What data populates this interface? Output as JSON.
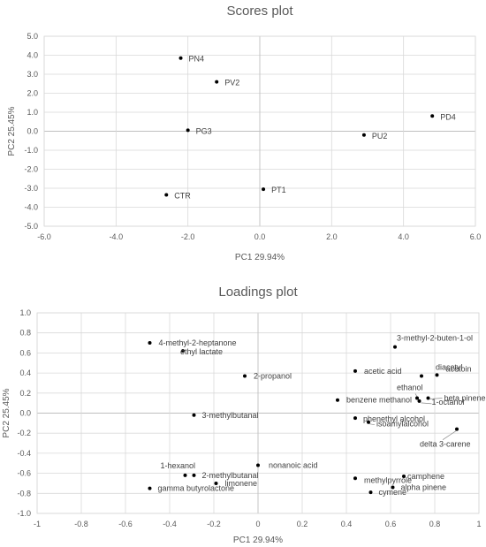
{
  "chart_data": [
    {
      "type": "scatter",
      "title": "Scores plot",
      "xlabel": "PC1 29.94%",
      "ylabel": "PC2 25.45%",
      "xlim": [
        -6,
        6
      ],
      "ylim": [
        -5,
        5
      ],
      "x_ticks": [
        "-6.0",
        "-4.0",
        "-2.0",
        "0.0",
        "2.0",
        "4.0",
        "6.0"
      ],
      "y_ticks": [
        "5.0",
        "4.0",
        "3.0",
        "2.0",
        "1.0",
        "0.0",
        "-1.0",
        "-2.0",
        "-3.0",
        "-4.0",
        "-5.0"
      ],
      "grid": true,
      "points": [
        {
          "label": "PN4",
          "x": -2.2,
          "y": 3.85
        },
        {
          "label": "PV2",
          "x": -1.2,
          "y": 2.6
        },
        {
          "label": "PD4",
          "x": 4.8,
          "y": 0.8
        },
        {
          "label": "PG3",
          "x": -2.0,
          "y": 0.05
        },
        {
          "label": "PU2",
          "x": 2.9,
          "y": -0.2
        },
        {
          "label": "PT1",
          "x": 0.1,
          "y": -3.05
        },
        {
          "label": "CTR",
          "x": -2.6,
          "y": -3.35
        }
      ]
    },
    {
      "type": "scatter",
      "title": "Loadings plot",
      "xlabel": "PC1 29.94%",
      "ylabel": "PC2 25.45%",
      "xlim": [
        -1,
        1
      ],
      "ylim": [
        -1,
        1
      ],
      "x_ticks": [
        "-1",
        "-0.8",
        "-0.6",
        "-0.4",
        "-0.2",
        "0",
        "0.2",
        "0.4",
        "0.6",
        "0.8",
        "1"
      ],
      "y_ticks": [
        "1.0",
        "0.8",
        "0.6",
        "0.4",
        "0.2",
        "0.0",
        "-0.2",
        "-0.4",
        "-0.6",
        "-0.8",
        "-1.0"
      ],
      "grid": true,
      "points": [
        {
          "label": "4-methyl-2-heptanone",
          "x": -0.49,
          "y": 0.7
        },
        {
          "label": "ethyl lactate",
          "x": -0.34,
          "y": 0.62
        },
        {
          "label": "3-methyl-2-buten-1-ol",
          "x": 0.62,
          "y": 0.66
        },
        {
          "label": "2-propanol",
          "x": -0.06,
          "y": 0.37
        },
        {
          "label": "acetic acid",
          "x": 0.44,
          "y": 0.42
        },
        {
          "label": "diacetyl",
          "x": 0.74,
          "y": 0.37
        },
        {
          "label": "acetoin",
          "x": 0.81,
          "y": 0.38
        },
        {
          "label": "benzene methanol",
          "x": 0.36,
          "y": 0.13
        },
        {
          "label": "ethanol",
          "x": 0.72,
          "y": 0.15
        },
        {
          "label": "beta pinene",
          "x": 0.77,
          "y": 0.15
        },
        {
          "label": "3-methylbutanal",
          "x": -0.29,
          "y": -0.02
        },
        {
          "label": "phenethyl alcohol",
          "x": 0.44,
          "y": -0.05
        },
        {
          "label": "isoamylalcohol",
          "x": 0.5,
          "y": -0.09
        },
        {
          "label": "1-octanol",
          "x": 0.73,
          "y": 0.12
        },
        {
          "label": "delta 3-carene",
          "x": 0.9,
          "y": -0.16
        },
        {
          "label": "nonanoic acid",
          "x": 0.0,
          "y": -0.52
        },
        {
          "label": "1-hexanol",
          "x": -0.33,
          "y": -0.62
        },
        {
          "label": "2-methylbutanal",
          "x": -0.29,
          "y": -0.62
        },
        {
          "label": "limonene",
          "x": -0.19,
          "y": -0.7
        },
        {
          "label": "gamma butyrolactone",
          "x": -0.49,
          "y": -0.75
        },
        {
          "label": "methylpyrrole",
          "x": 0.44,
          "y": -0.65
        },
        {
          "label": "camphene",
          "x": 0.66,
          "y": -0.63
        },
        {
          "label": "alpha pinene",
          "x": 0.61,
          "y": -0.74
        },
        {
          "label": "cymene",
          "x": 0.51,
          "y": -0.79
        }
      ]
    }
  ]
}
